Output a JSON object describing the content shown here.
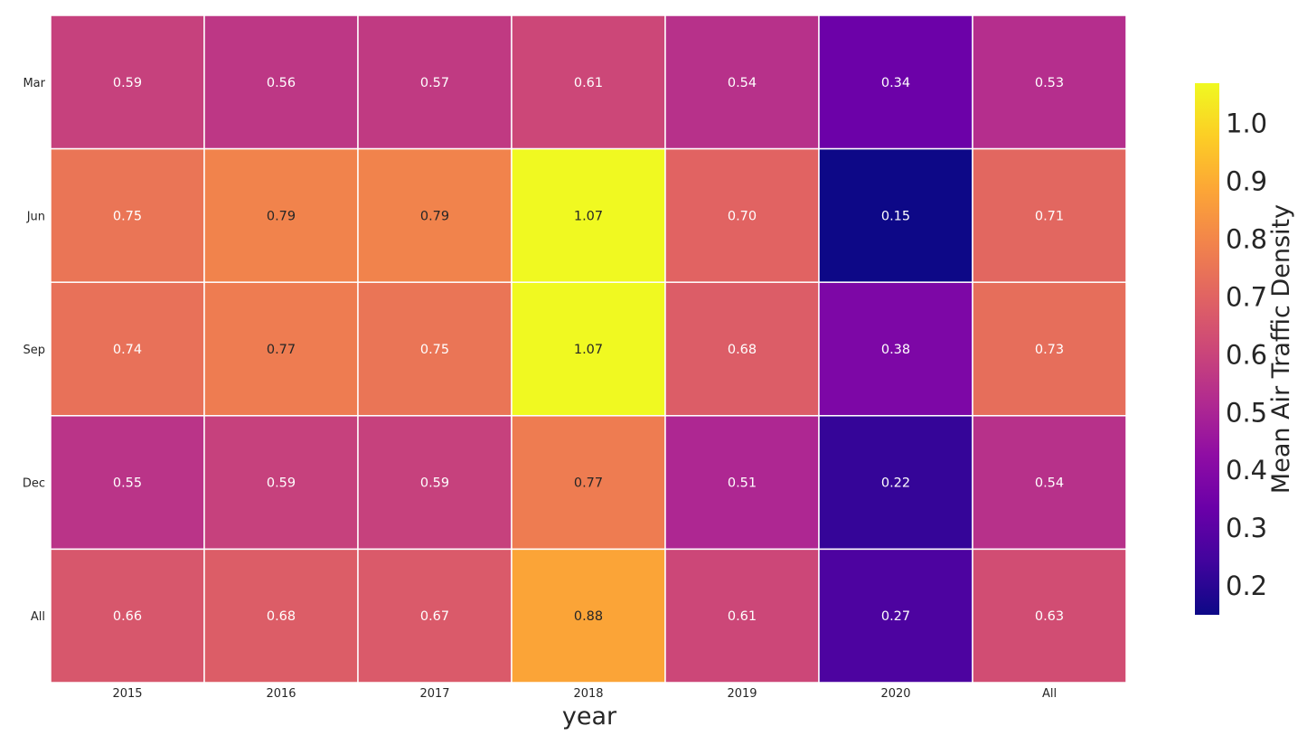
{
  "chart_data": {
    "type": "heatmap",
    "title": "",
    "xlabel": "year",
    "ylabel": "",
    "x_categories": [
      "2015",
      "2016",
      "2017",
      "2018",
      "2019",
      "2020",
      "All"
    ],
    "y_categories": [
      "Mar",
      "Jun",
      "Sep",
      "Dec",
      "All"
    ],
    "values": [
      [
        0.59,
        0.56,
        0.57,
        0.61,
        0.54,
        0.34,
        0.53
      ],
      [
        0.75,
        0.79,
        0.79,
        1.07,
        0.7,
        0.15,
        0.71
      ],
      [
        0.74,
        0.77,
        0.75,
        1.07,
        0.68,
        0.38,
        0.73
      ],
      [
        0.55,
        0.59,
        0.59,
        0.77,
        0.51,
        0.22,
        0.54
      ],
      [
        0.66,
        0.68,
        0.67,
        0.88,
        0.61,
        0.27,
        0.63
      ]
    ],
    "value_labels": [
      [
        "0.59",
        "0.56",
        "0.57",
        "0.61",
        "0.54",
        "0.34",
        "0.53"
      ],
      [
        "0.75",
        "0.79",
        "0.79",
        "1.07",
        "0.70",
        "0.15",
        "0.71"
      ],
      [
        "0.74",
        "0.77",
        "0.75",
        "1.07",
        "0.68",
        "0.38",
        "0.73"
      ],
      [
        "0.55",
        "0.59",
        "0.59",
        "0.77",
        "0.51",
        "0.22",
        "0.54"
      ],
      [
        "0.66",
        "0.68",
        "0.67",
        "0.88",
        "0.61",
        "0.27",
        "0.63"
      ]
    ],
    "colormap": "plasma",
    "colorbar": {
      "label": "Mean Air Traffic Density",
      "vmin": 0.15,
      "vmax": 1.07,
      "ticks": [
        0.2,
        0.3,
        0.4,
        0.5,
        0.6,
        0.7,
        0.8,
        0.9,
        1.0
      ],
      "tick_labels": [
        "0.2",
        "0.3",
        "0.4",
        "0.5",
        "0.6",
        "0.7",
        "0.8",
        "0.9",
        "1.0"
      ]
    },
    "grid": false,
    "cell_border_color": "#ffffff",
    "annotation_colors": {
      "light": "#ffffff",
      "dark": "#262626"
    }
  }
}
